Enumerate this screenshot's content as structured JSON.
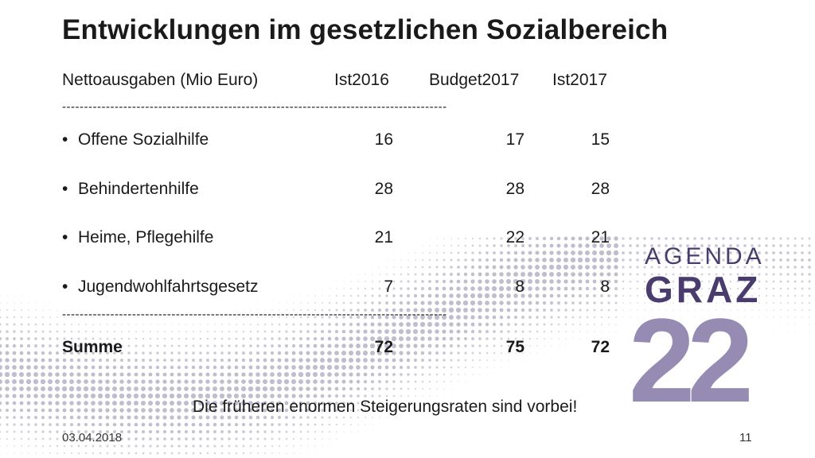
{
  "slide": {
    "title": "Entwicklungen im gesetzlichen Sozialbereich",
    "header": {
      "label": "Nettoausgaben (Mio Euro)",
      "col1": "Ist2016",
      "col2": "Budget2017",
      "col3": "Ist2017"
    },
    "separator": "----------------------------------------------------------------------------------------",
    "rows": [
      {
        "bullet": "•",
        "label": "Offene Sozialhilfe",
        "v1": "16",
        "v2": "17",
        "v3": "15"
      },
      {
        "bullet": "•",
        "label": "Behindertenhilfe",
        "v1": "28",
        "v2": "28",
        "v3": "28"
      },
      {
        "bullet": "•",
        "label": "Heime, Pflegehilfe",
        "v1": "21",
        "v2": "22",
        "v3": "21"
      },
      {
        "bullet": "•",
        "label": "Jugendwohlfahrtsgesetz",
        "v1": "7",
        "v2": "8",
        "v3": "8"
      }
    ],
    "total": {
      "label": "Summe",
      "v1": "72",
      "v2": "75",
      "v3": "72"
    },
    "note": "Die früheren enormen Steigerungsraten sind vorbei!",
    "date": "03.04.2018",
    "page_number": "11"
  },
  "logo": {
    "line1": "AGENDA",
    "line2": "GRAZ",
    "number": "22",
    "color": "#4a3d6e",
    "accent": "#8a7fab"
  }
}
